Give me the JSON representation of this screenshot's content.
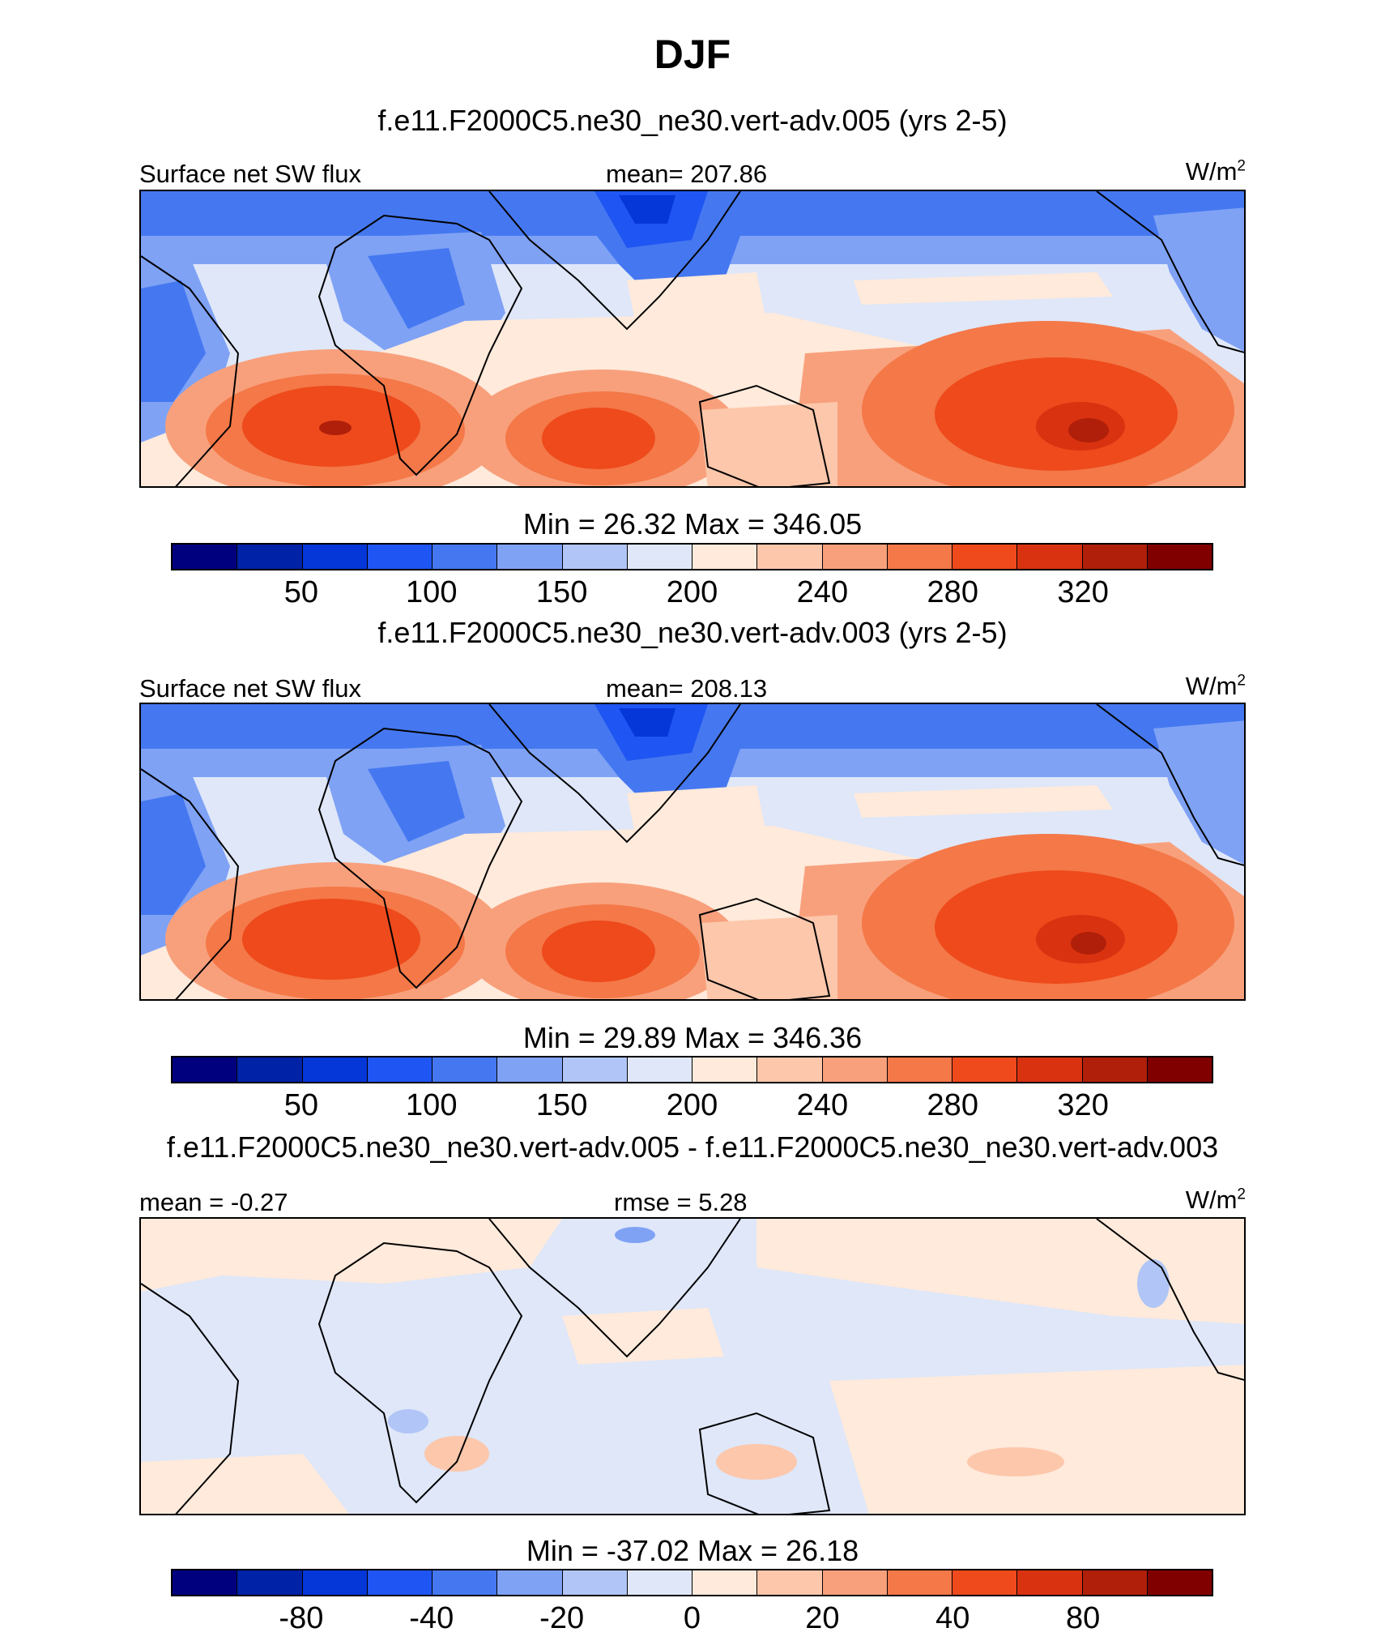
{
  "page": {
    "title": "DJF"
  },
  "palette": [
    "#00007f",
    "#0022a6",
    "#0536d8",
    "#1f55f2",
    "#4578f0",
    "#7fa2f5",
    "#b1c6f6",
    "#dfe7f9",
    "#ffeadb",
    "#fcc7ab",
    "#f8a07c",
    "#f47848",
    "#ee4a1c",
    "#d93210",
    "#b01f0a",
    "#800000"
  ],
  "chart_data": [
    {
      "type": "heatmap",
      "title": "f.e11.F2000C5.ne30_ne30.vert-adv.005 (yrs 2-5)",
      "left_label": "Surface net SW flux",
      "center_label": "mean= 207.86",
      "units": "W/m",
      "units_sup": "2",
      "minmax": "Min =  26.32 Max = 346.05",
      "min": 26.32,
      "max": 346.05,
      "mean": 207.86,
      "colorbar_ticks": [
        "50",
        "100",
        "150",
        "200",
        "240",
        "280",
        "320"
      ],
      "colorbar_tick_positions": [
        2,
        4,
        6,
        8,
        10,
        12,
        14
      ]
    },
    {
      "type": "heatmap",
      "title": "f.e11.F2000C5.ne30_ne30.vert-adv.003 (yrs 2-5)",
      "left_label": "Surface net SW flux",
      "center_label": "mean= 208.13",
      "units": "W/m",
      "units_sup": "2",
      "minmax": "Min =  29.89 Max = 346.36",
      "min": 29.89,
      "max": 346.36,
      "mean": 208.13,
      "colorbar_ticks": [
        "50",
        "100",
        "150",
        "200",
        "240",
        "280",
        "320"
      ],
      "colorbar_tick_positions": [
        2,
        4,
        6,
        8,
        10,
        12,
        14
      ]
    },
    {
      "type": "heatmap",
      "title": "f.e11.F2000C5.ne30_ne30.vert-adv.005 - f.e11.F2000C5.ne30_ne30.vert-adv.003",
      "left_label": "mean =  -0.27",
      "center_label": "rmse =   5.28",
      "units": "W/m",
      "units_sup": "2",
      "minmax": "Min = -37.02 Max =  26.18",
      "min": -37.02,
      "max": 26.18,
      "mean": -0.27,
      "rmse": 5.28,
      "colorbar_ticks": [
        "-80",
        "-40",
        "-20",
        "0",
        "20",
        "40",
        "80"
      ],
      "colorbar_tick_positions": [
        2,
        4,
        6,
        8,
        10,
        12,
        14
      ]
    }
  ]
}
